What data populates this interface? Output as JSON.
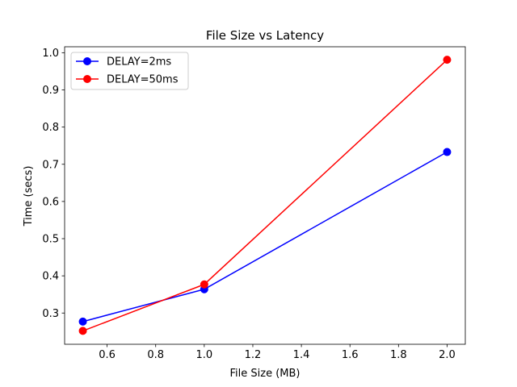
{
  "chart_data": {
    "type": "line",
    "title": "File Size vs Latency",
    "xlabel": "File Size (MB)",
    "ylabel": "Time (secs)",
    "xlim": [
      0.425,
      2.075
    ],
    "ylim": [
      0.216,
      1.016
    ],
    "xticks": [
      0.6,
      0.8,
      1.0,
      1.2,
      1.4,
      1.6,
      1.8,
      2.0
    ],
    "xtick_labels": [
      "0.6",
      "0.8",
      "1.0",
      "1.2",
      "1.4",
      "1.6",
      "1.8",
      "2.0"
    ],
    "yticks": [
      0.3,
      0.4,
      0.5,
      0.6,
      0.7,
      0.8,
      0.9,
      1.0
    ],
    "ytick_labels": [
      "0.3",
      "0.4",
      "0.5",
      "0.6",
      "0.7",
      "0.8",
      "0.9",
      "1.0"
    ],
    "grid": false,
    "legend_position": "top-left",
    "series": [
      {
        "name": "DELAY=2ms",
        "color": "#0000ff",
        "marker": "circle",
        "x": [
          0.5,
          1.0,
          2.0
        ],
        "y": [
          0.277,
          0.364,
          0.733
        ]
      },
      {
        "name": "DELAY=50ms",
        "color": "#ff0000",
        "marker": "circle",
        "x": [
          0.5,
          1.0,
          2.0
        ],
        "y": [
          0.252,
          0.377,
          0.981
        ]
      }
    ]
  }
}
